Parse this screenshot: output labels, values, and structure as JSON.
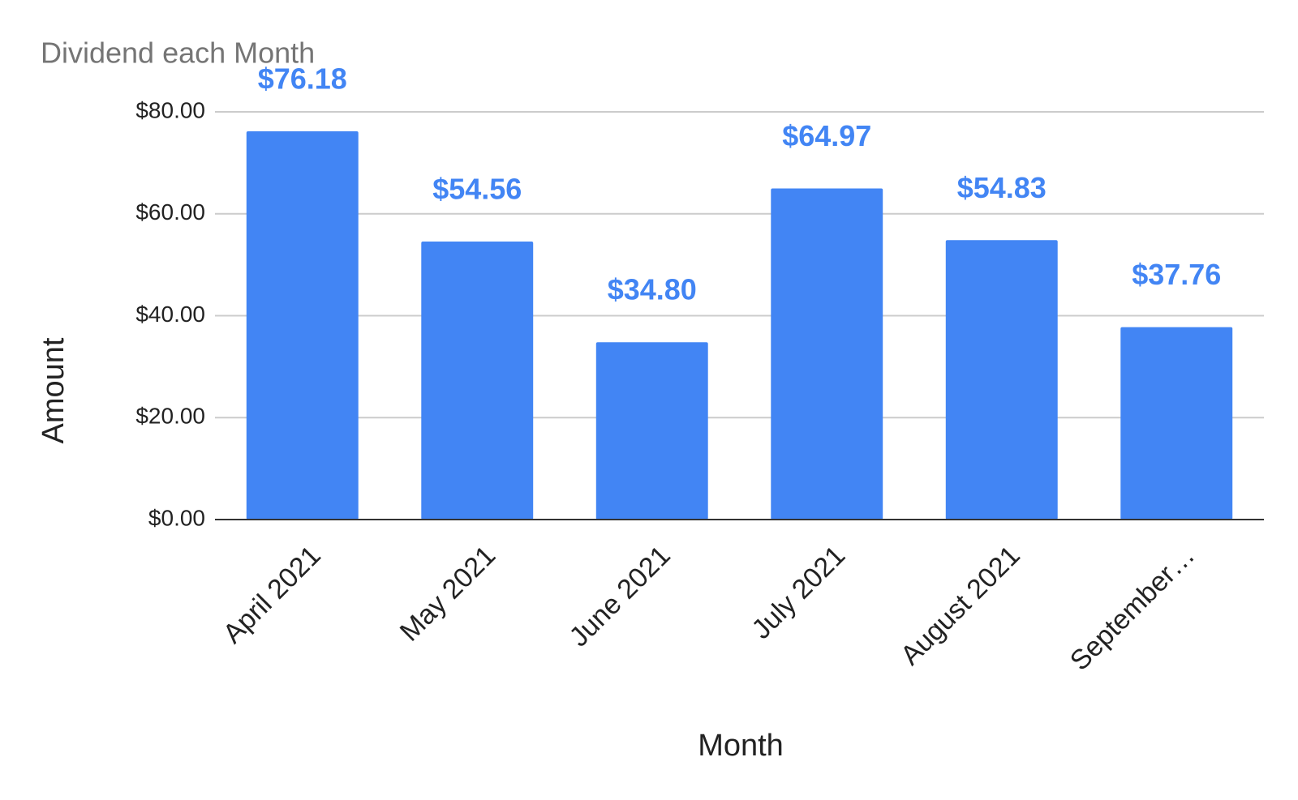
{
  "chart_data": {
    "type": "bar",
    "title": "Dividend each Month",
    "x_label": "Month",
    "y_label": "Amount",
    "categories": [
      "April 2021",
      "May 2021",
      "June 2021",
      "July 2021",
      "August 2021",
      "September…"
    ],
    "values": [
      76.18,
      54.56,
      34.8,
      64.97,
      54.83,
      37.76
    ],
    "value_labels": [
      "$76.18",
      "$54.56",
      "$34.80",
      "$64.97",
      "$54.83",
      "$37.76"
    ],
    "color": "#4285f4",
    "ylim": [
      0,
      80
    ],
    "yticks": [
      {
        "value": 0,
        "label": "$0.00"
      },
      {
        "value": 20,
        "label": "$20.00"
      },
      {
        "value": 40,
        "label": "$40.00"
      },
      {
        "value": 60,
        "label": "$60.00"
      },
      {
        "value": 80,
        "label": "$80.00"
      }
    ],
    "grid": true
  }
}
